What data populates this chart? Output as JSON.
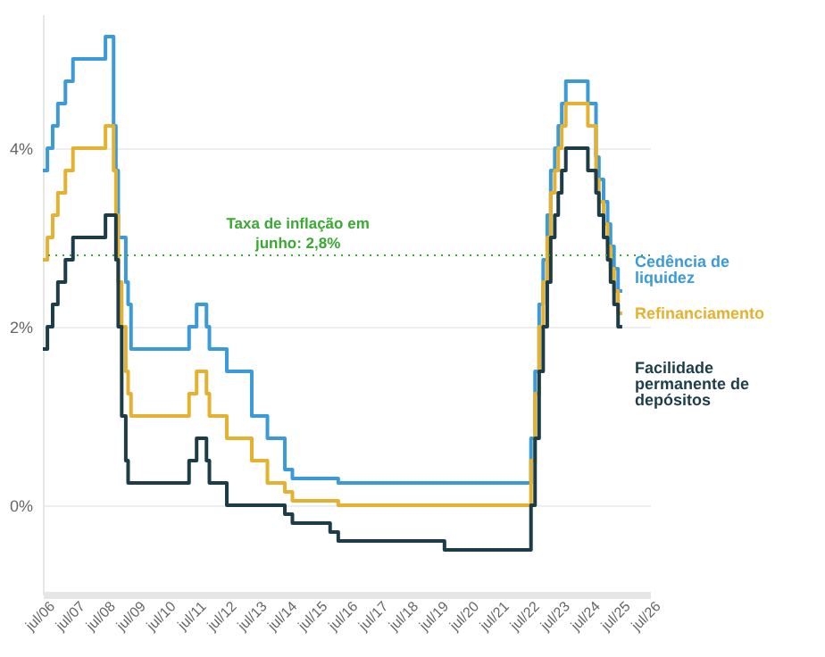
{
  "chart_data": {
    "type": "step",
    "xlim": [
      "2006-06-15",
      "2026-07-01"
    ],
    "ylim": [
      -1,
      5.5
    ],
    "xticks": [
      {
        "value": "2006-07-01",
        "label": "jul/06"
      },
      {
        "value": "2007-07-01",
        "label": "jul/07"
      },
      {
        "value": "2008-07-01",
        "label": "jul/08"
      },
      {
        "value": "2009-07-01",
        "label": "jul/09"
      },
      {
        "value": "2010-07-01",
        "label": "jul/10"
      },
      {
        "value": "2011-07-01",
        "label": "jul/11"
      },
      {
        "value": "2012-07-01",
        "label": "jul/12"
      },
      {
        "value": "2013-07-01",
        "label": "jul/13"
      },
      {
        "value": "2014-07-01",
        "label": "jul/14"
      },
      {
        "value": "2015-07-01",
        "label": "jul/15"
      },
      {
        "value": "2016-07-01",
        "label": "jul/16"
      },
      {
        "value": "2017-07-01",
        "label": "jul/17"
      },
      {
        "value": "2018-07-01",
        "label": "jul/18"
      },
      {
        "value": "2019-07-01",
        "label": "jul/19"
      },
      {
        "value": "2020-07-01",
        "label": "jul/20"
      },
      {
        "value": "2021-07-01",
        "label": "jul/21"
      },
      {
        "value": "2022-07-01",
        "label": "jul/22"
      },
      {
        "value": "2023-07-01",
        "label": "jul/23"
      },
      {
        "value": "2024-07-01",
        "label": "jul/24"
      },
      {
        "value": "2025-07-01",
        "label": "jul/25"
      },
      {
        "value": "2026-07-01",
        "label": "jul/26"
      }
    ],
    "yticks": [
      {
        "value": 0,
        "label": "0%"
      },
      {
        "value": 2,
        "label": "2%"
      },
      {
        "value": 4,
        "label": "4%"
      }
    ],
    "grid": "y",
    "legend": "right",
    "ref_lines": [
      {
        "axis": "y",
        "value": 2.8,
        "label": "Taxa de inflação em\njunho: 2,8%",
        "color": "#3aaa35",
        "line_style": "dotted"
      }
    ],
    "series": [
      {
        "name": "Cedência de liquidez",
        "color": "#3b9ad9",
        "x": [
          "2006-06-15",
          "2006-08-09",
          "2006-10-11",
          "2006-12-13",
          "2007-03-14",
          "2007-06-13",
          "2008-07-09",
          "2008-10-15",
          "2008-11-12",
          "2008-12-10",
          "2009-01-21",
          "2009-03-11",
          "2009-04-08",
          "2009-05-13",
          "2011-04-13",
          "2011-07-13",
          "2011-11-09",
          "2011-12-14",
          "2012-07-11",
          "2013-05-08",
          "2013-11-13",
          "2014-06-11",
          "2014-09-10",
          "2016-03-16",
          "2022-07-27",
          "2022-09-14",
          "2022-11-02",
          "2022-12-21",
          "2023-02-08",
          "2023-03-22",
          "2023-05-10",
          "2023-06-21",
          "2023-08-02",
          "2023-09-20",
          "2024-06-12",
          "2024-09-18",
          "2024-10-23",
          "2024-12-18",
          "2025-02-05",
          "2025-03-12",
          "2025-04-23",
          "2025-06-11",
          "2025-07-31"
        ],
        "values": [
          3.75,
          4.0,
          4.25,
          4.5,
          4.75,
          5.0,
          5.25,
          4.25,
          3.75,
          3.0,
          3.0,
          2.5,
          2.25,
          1.75,
          2.0,
          2.25,
          2.0,
          1.75,
          1.5,
          1.0,
          0.75,
          0.4,
          0.3,
          0.25,
          0.75,
          1.5,
          2.25,
          2.75,
          3.25,
          3.75,
          4.0,
          4.25,
          4.5,
          4.75,
          4.5,
          3.9,
          3.65,
          3.4,
          3.15,
          2.9,
          2.65,
          2.4,
          2.4
        ]
      },
      {
        "name": "Refinanciamento",
        "color": "#e6b12e",
        "x": [
          "2006-06-15",
          "2006-08-09",
          "2006-10-11",
          "2006-12-13",
          "2007-03-14",
          "2007-06-13",
          "2008-07-09",
          "2008-10-15",
          "2008-11-12",
          "2008-12-10",
          "2009-01-21",
          "2009-03-11",
          "2009-04-08",
          "2009-05-13",
          "2011-04-13",
          "2011-07-13",
          "2011-11-09",
          "2011-12-14",
          "2012-07-11",
          "2013-05-08",
          "2013-11-13",
          "2014-06-11",
          "2014-09-10",
          "2016-03-16",
          "2022-07-27",
          "2022-09-14",
          "2022-11-02",
          "2022-12-21",
          "2023-02-08",
          "2023-03-22",
          "2023-05-10",
          "2023-06-21",
          "2023-08-02",
          "2023-09-20",
          "2024-06-12",
          "2024-09-18",
          "2024-10-23",
          "2024-12-18",
          "2025-02-05",
          "2025-03-12",
          "2025-04-23",
          "2025-06-11",
          "2025-07-31"
        ],
        "values": [
          2.75,
          3.0,
          3.25,
          3.5,
          3.75,
          4.0,
          4.25,
          3.75,
          3.25,
          2.5,
          2.0,
          1.5,
          1.25,
          1.0,
          1.25,
          1.5,
          1.25,
          1.0,
          0.75,
          0.5,
          0.25,
          0.15,
          0.05,
          0.0,
          0.5,
          1.25,
          2.0,
          2.5,
          3.0,
          3.5,
          3.75,
          4.0,
          4.25,
          4.5,
          4.25,
          3.65,
          3.4,
          3.15,
          2.9,
          2.65,
          2.4,
          2.15,
          2.15
        ]
      },
      {
        "name": "Facilidade permanente de depósitos",
        "color": "#1c3d48",
        "x": [
          "2006-06-15",
          "2006-08-09",
          "2006-10-11",
          "2006-12-13",
          "2007-03-14",
          "2007-06-13",
          "2008-07-09",
          "2008-10-15",
          "2008-11-12",
          "2008-12-10",
          "2009-01-21",
          "2009-03-11",
          "2009-04-08",
          "2011-04-13",
          "2011-07-13",
          "2011-11-09",
          "2011-12-14",
          "2012-07-11",
          "2014-06-11",
          "2014-09-10",
          "2015-12-09",
          "2016-03-16",
          "2019-09-18",
          "2022-07-27",
          "2022-09-14",
          "2022-11-02",
          "2022-12-21",
          "2023-02-08",
          "2023-03-22",
          "2023-05-10",
          "2023-06-21",
          "2023-08-02",
          "2023-09-20",
          "2024-06-12",
          "2024-09-18",
          "2024-10-23",
          "2024-12-18",
          "2025-02-05",
          "2025-03-12",
          "2025-04-23",
          "2025-06-11",
          "2025-07-31"
        ],
        "values": [
          1.75,
          2.0,
          2.25,
          2.5,
          2.75,
          3.0,
          3.25,
          3.25,
          2.75,
          2.0,
          1.0,
          0.5,
          0.25,
          0.5,
          0.75,
          0.5,
          0.25,
          0.0,
          -0.1,
          -0.2,
          -0.3,
          -0.4,
          -0.5,
          0.0,
          0.75,
          1.5,
          2.0,
          2.5,
          3.0,
          3.25,
          3.5,
          3.75,
          4.0,
          3.75,
          3.5,
          3.25,
          3.0,
          2.75,
          2.5,
          2.25,
          2.0,
          2.0
        ]
      }
    ]
  }
}
